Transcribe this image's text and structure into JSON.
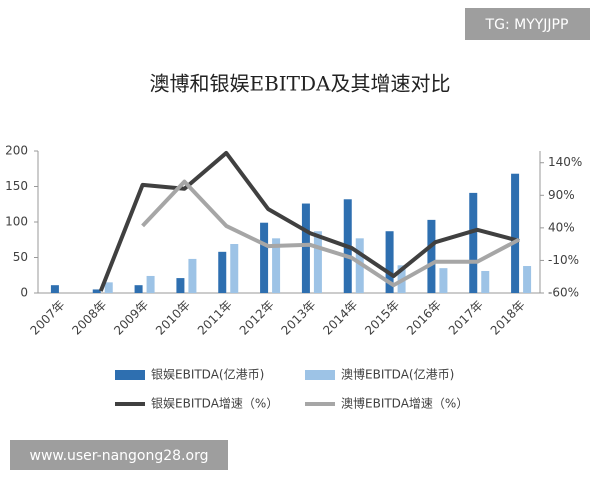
{
  "chart_data": {
    "type": "bar",
    "title": "澳博和银娱EBITDA及其增速对比",
    "categories": [
      "2007年",
      "2008年",
      "2009年",
      "2010年",
      "2011年",
      "2012年",
      "2013年",
      "2014年",
      "2015年",
      "2016年",
      "2017年",
      "2018年"
    ],
    "series": [
      {
        "name": "银娱EBITDA(亿港币)",
        "type": "bar",
        "color": "#2e6fb0",
        "values": [
          11,
          5,
          11,
          21,
          58,
          99,
          126,
          132,
          87,
          103,
          141,
          168
        ]
      },
      {
        "name": "澳博EBITDA(亿港币)",
        "type": "bar",
        "color": "#9dc3e6",
        "values": [
          null,
          15,
          24,
          48,
          69,
          77,
          87,
          77,
          39,
          35,
          31,
          38
        ]
      },
      {
        "name": "银娱EBITDA增速（%）",
        "type": "line",
        "axis": "y2",
        "color": "#404040",
        "values": [
          null,
          -57,
          106,
          100,
          155,
          69,
          32,
          9,
          -34,
          18,
          37,
          20
        ]
      },
      {
        "name": "澳博EBITDA增速（%）",
        "type": "line",
        "axis": "y2",
        "color": "#a6a6a6",
        "values": [
          null,
          null,
          43,
          111,
          43,
          12,
          14,
          -6,
          -48,
          -12,
          -12,
          22
        ]
      }
    ],
    "ylim": [
      0,
      200
    ],
    "yticks": [
      0,
      50,
      100,
      150,
      200
    ],
    "y2lim": [
      -60,
      158
    ],
    "y2ticks": [
      {
        "value": -60,
        "label": "-60%"
      },
      {
        "value": -10,
        "label": "-10%"
      },
      {
        "value": 40,
        "label": "40%"
      },
      {
        "value": 90,
        "label": "90%"
      },
      {
        "value": 140,
        "label": "140%"
      }
    ],
    "grid": false,
    "legend": "bottom"
  },
  "watermarks": [
    "TG: MYYJJPP",
    "www.user-nangong28.org"
  ]
}
